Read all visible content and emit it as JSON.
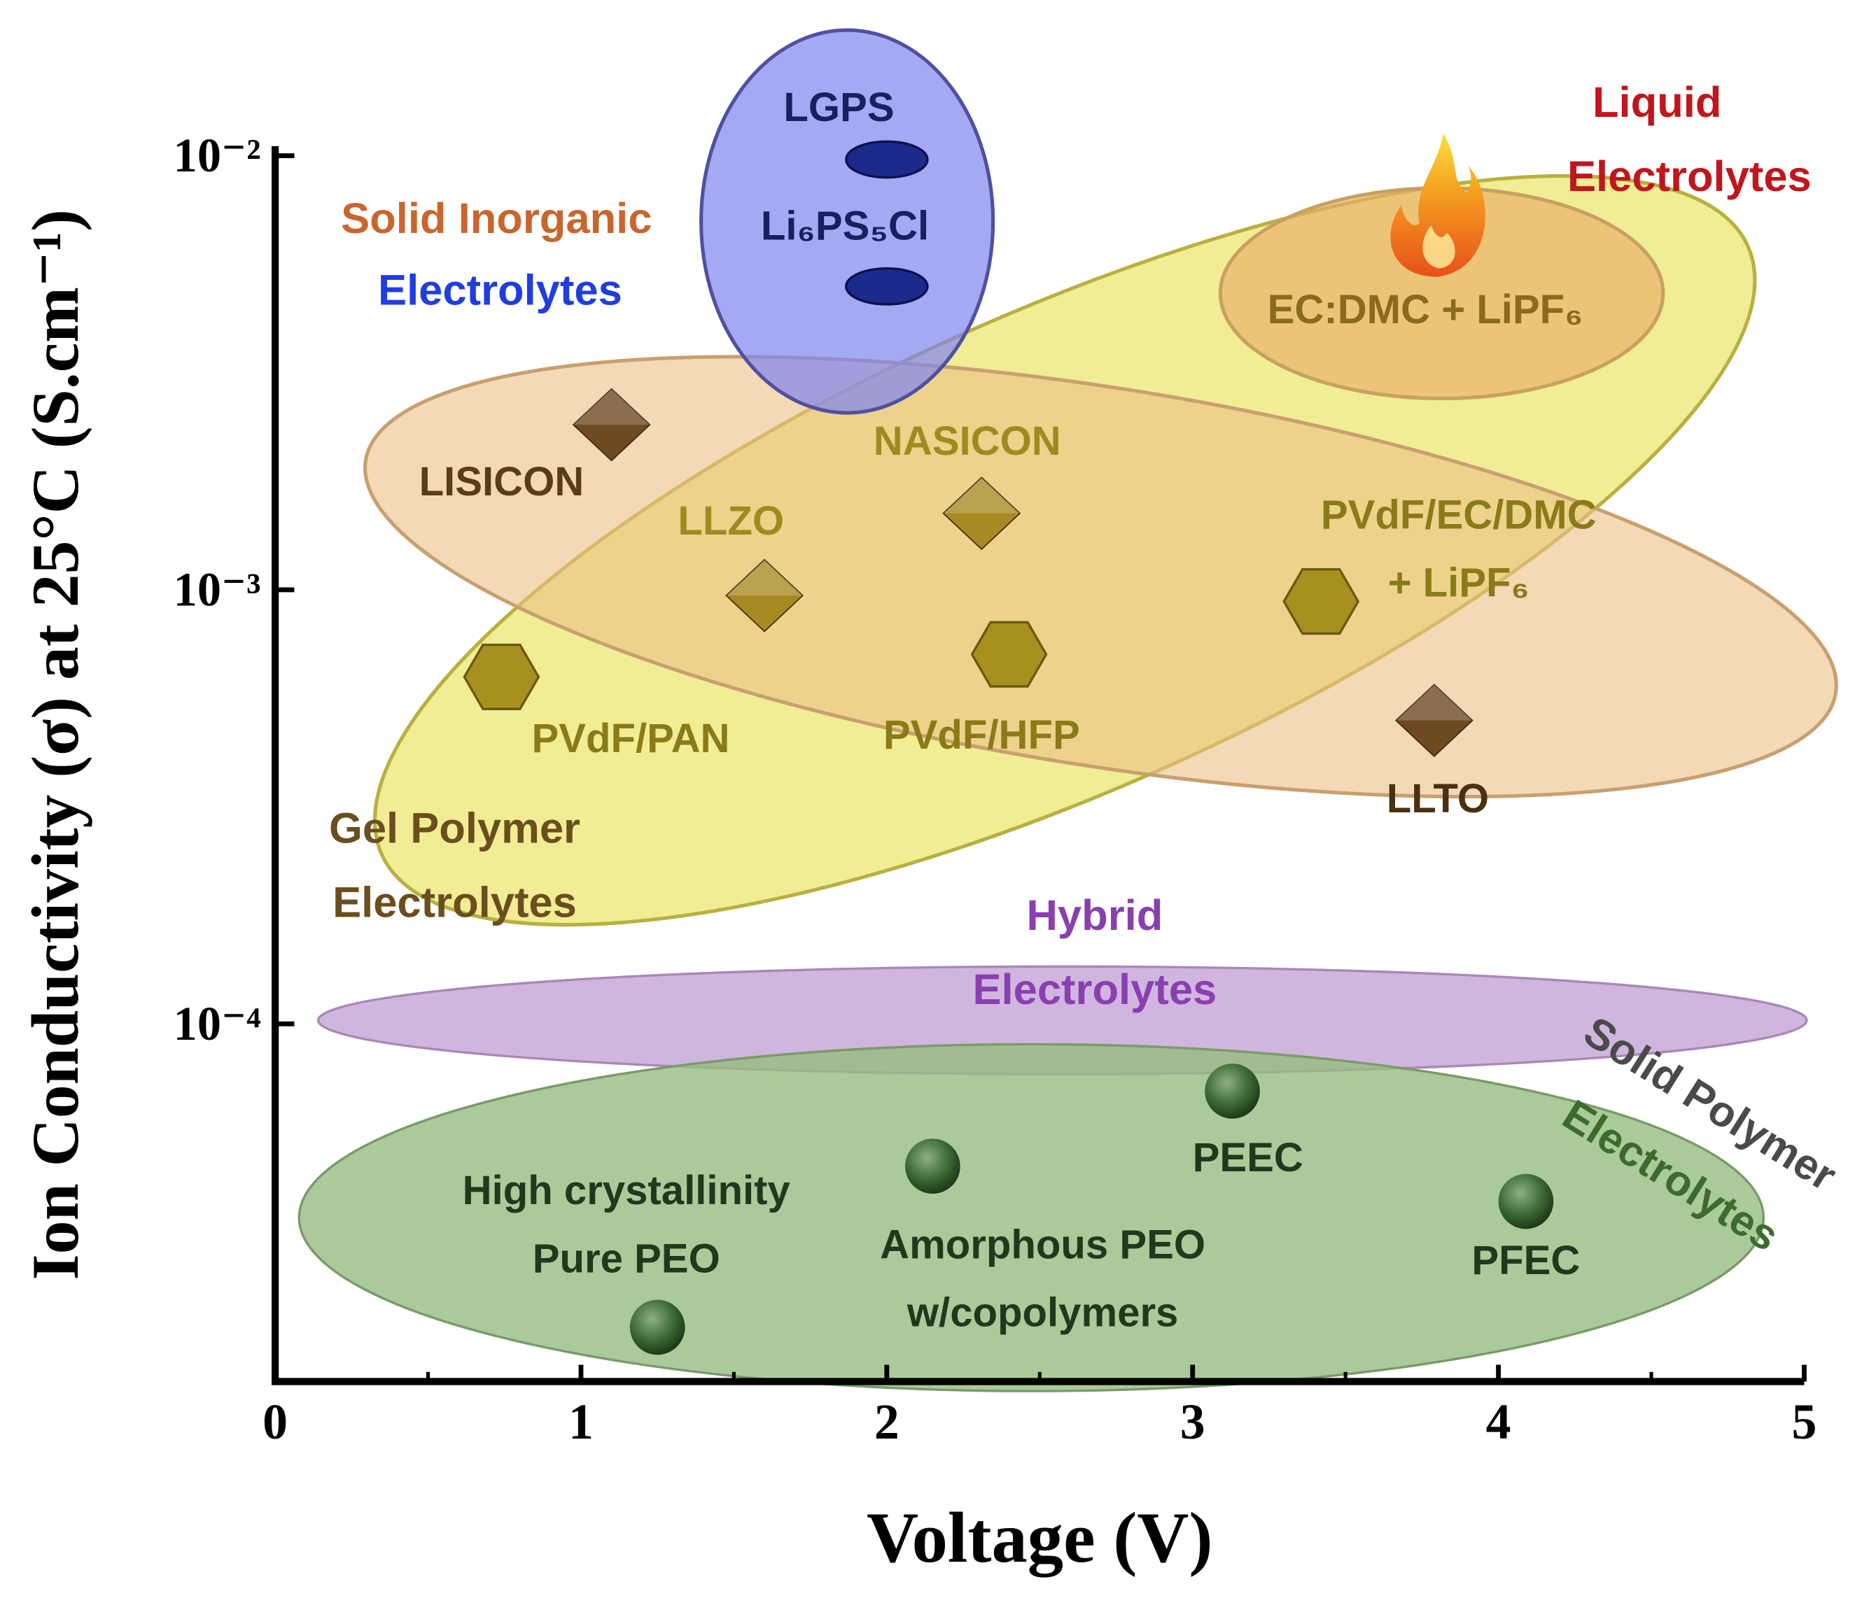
{
  "chart_data": {
    "type": "scatter",
    "x_label": "Voltage (V)",
    "y_label": "Ion Conductivity (σ) at 25°C (S.cm⁻¹)",
    "xlim": [
      0,
      5
    ],
    "xticks": [
      0,
      1,
      2,
      3,
      4,
      5
    ],
    "xminorticks": [
      0.5,
      1.5,
      2.5,
      3.5,
      4.5
    ],
    "ylim": [
      1.5e-05,
      0.01
    ],
    "yscale": "log",
    "yticks": [
      {
        "value": 0.01,
        "label": "10⁻²"
      },
      {
        "value": 0.001,
        "label": "10⁻³"
      },
      {
        "value": 0.0001,
        "label": "10⁻⁴"
      }
    ],
    "points": [
      {
        "x": 2.0,
        "y": 0.0098,
        "label": [
          "LGPS"
        ],
        "marker": "ellipse",
        "color": "#1c2a8c",
        "label_color": "#1a1f5e"
      },
      {
        "x": 2.0,
        "y": 0.005,
        "label": [
          "Li₆PS₅Cl"
        ],
        "marker": "ellipse",
        "color": "#1c2a8c",
        "label_color": "#1a1f5e"
      },
      {
        "x": 3.8,
        "y": 0.007,
        "label": [
          "EC:DMC + LiPF₆"
        ],
        "marker": "flame",
        "color": "#f07a10",
        "label_color": "#8a6a20"
      },
      {
        "x": 1.1,
        "y": 0.0024,
        "label": [
          "LISICON"
        ],
        "marker": "diamond",
        "color": "#6e4a22",
        "label_color": "#5a3b1a"
      },
      {
        "x": 2.31,
        "y": 0.0015,
        "label": [
          "NASICON"
        ],
        "marker": "diamond",
        "color": "#a88a22",
        "label_color": "#a08a20"
      },
      {
        "x": 1.6,
        "y": 0.00097,
        "label": [
          "LLZO"
        ],
        "marker": "diamond",
        "color": "#a88a22",
        "label_color": "#a08a20"
      },
      {
        "x": 3.79,
        "y": 0.0005,
        "label": [
          "LLTO"
        ],
        "marker": "diamond",
        "color": "#6e4a22",
        "label_color": "#4a3010"
      },
      {
        "x": 3.42,
        "y": 0.00094,
        "label": [
          "PVdF/EC/DMC",
          "+ LiPF₆"
        ],
        "marker": "hexagon",
        "color": "#a89020",
        "label_color": "#8a7a18"
      },
      {
        "x": 2.4,
        "y": 0.00071,
        "label": [
          "PVdF/HFP"
        ],
        "marker": "hexagon",
        "color": "#a89020",
        "label_color": "#8a7a18"
      },
      {
        "x": 0.74,
        "y": 0.00063,
        "label": [
          "PVdF/PAN"
        ],
        "marker": "hexagon",
        "color": "#a89020",
        "label_color": "#8a7a18"
      },
      {
        "x": 3.13,
        "y": 7e-05,
        "label": [
          "PEEC"
        ],
        "marker": "sphere",
        "color": "#3d6b35",
        "label_color": "#1e3a1e"
      },
      {
        "x": 2.15,
        "y": 4.7e-05,
        "label": [
          "Amorphous PEO",
          "w/copolymers"
        ],
        "marker": "sphere",
        "color": "#3d6b35",
        "label_color": "#1e3a1e"
      },
      {
        "x": 4.09,
        "y": 3.9e-05,
        "label": [
          "PFEC"
        ],
        "marker": "sphere",
        "color": "#3d6b35",
        "label_color": "#1e3a1e"
      },
      {
        "x": 1.25,
        "y": 2e-05,
        "label": [
          "High crystallinity",
          "Pure PEO"
        ],
        "marker": "sphere",
        "color": "#3d6b35",
        "label_color": "#1e3a1e"
      }
    ],
    "annotations": [
      {
        "lines": [
          {
            "text": "Solid Inorganic",
            "color": "#c8662e"
          },
          {
            "text": "Electrolytes",
            "color": "#1f3de0"
          }
        ]
      },
      {
        "lines": [
          {
            "text": "Liquid",
            "color": "#c0161d"
          },
          {
            "text": "Electrolytes",
            "color": "#c0161d"
          }
        ]
      },
      {
        "lines": [
          {
            "text": "Gel Polymer",
            "color": "#6b4e1e"
          },
          {
            "text": "Electrolytes",
            "color": "#6b4e1e"
          }
        ]
      },
      {
        "lines": [
          {
            "text": "Hybrid",
            "color": "#8a3fb0"
          },
          {
            "text": "Electrolytes",
            "color": "#8a3fb0"
          }
        ]
      },
      {
        "lines": [
          {
            "text": "Solid Polymer",
            "color": "#4a4a4a"
          },
          {
            "text": "Electrolytes",
            "color": "#3d6b2e"
          }
        ]
      }
    ]
  }
}
